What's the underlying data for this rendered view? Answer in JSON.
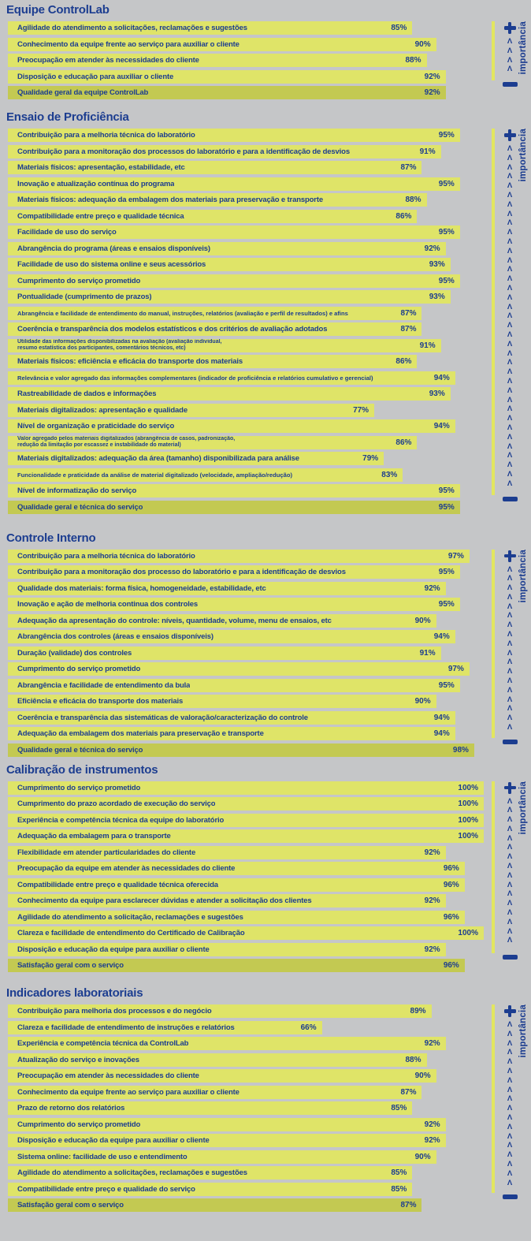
{
  "page": {
    "background_color": "#c5c6c8",
    "bar_color": "#dfe468",
    "summary_bar_color": "#c3c952",
    "text_color": "#1c3d90",
    "unit": "%"
  },
  "importance_scale": {
    "label": "importância",
    "plus_icon": "+",
    "minus_icon": "−",
    "chevron_char": "Λ"
  },
  "chart_data": [
    {
      "type": "bar",
      "title": "Equipe ControlLab",
      "unit": "%",
      "xlim": [
        0,
        100
      ],
      "legend_position": "right",
      "items": [
        {
          "label": "Agilidade do atendimento a solicitações, reclamações e sugestões",
          "value": 85
        },
        {
          "label": "Conhecimento da equipe frente ao serviço para auxiliar o cliente",
          "value": 90
        },
        {
          "label": "Preocupação em atender às necessidades do cliente",
          "value": 88
        },
        {
          "label": "Disposição e educação para auxiliar o cliente",
          "value": 92
        },
        {
          "label": "Qualidade geral da equipe ControlLab",
          "value": 92,
          "summary": true
        }
      ]
    },
    {
      "type": "bar",
      "title": "Ensaio de Proficiência",
      "unit": "%",
      "xlim": [
        0,
        100
      ],
      "legend_position": "right",
      "items": [
        {
          "label": "Contribuição para a melhoria técnica do laboratório",
          "value": 95
        },
        {
          "label": "Contribuição para a monitoração dos processos do laboratório e para a identificação de desvios",
          "value": 91
        },
        {
          "label": "Materiais físicos: apresentação, estabilidade, etc",
          "value": 87
        },
        {
          "label": "Inovação e atualização contínua do programa",
          "value": 95
        },
        {
          "label": "Materiais físicos: adequação da embalagem dos materiais para preservação e transporte",
          "value": 88
        },
        {
          "label": "Compatibilidade entre preço e qualidade técnica",
          "value": 86
        },
        {
          "label": "Facilidade de uso do serviço",
          "value": 95
        },
        {
          "label": "Abrangência do programa (áreas e ensaios disponíveis)",
          "value": 92
        },
        {
          "label": "Facilidade de uso do sistema online e seus acessórios",
          "value": 93
        },
        {
          "label": "Cumprimento do serviço prometido",
          "value": 95
        },
        {
          "label": "Pontualidade (cumprimento de prazos)",
          "value": 93
        },
        {
          "label": "Abrangência e facilidade de entendimento do manual, instruções, relatórios (avaliação e perfil de resultados) e afins",
          "value": 87,
          "small": true
        },
        {
          "label": "Coerência e transparência dos modelos estatísticos e dos critérios de avaliação adotados",
          "value": 87
        },
        {
          "label": "Utilidade das informações disponibilizadas na avaliação (avaliação individual,\nresumo estatística dos participantes, comentários técnicos, etc)",
          "value": 91,
          "twoline": true
        },
        {
          "label": "Materiais físicos: eficiência e eficácia do transporte dos materiais",
          "value": 86
        },
        {
          "label": "Relevância e valor agregado das informações complementares (indicador de proficiência e relatórios cumulativo e gerencial)",
          "value": 94,
          "small": true
        },
        {
          "label": "Rastreabilidade de dados e informações",
          "value": 93
        },
        {
          "label": "Materiais digitalizados: apresentação e qualidade",
          "value": 77
        },
        {
          "label": "Nível de organização e praticidade do serviço",
          "value": 94
        },
        {
          "label": "Valor agregado pelos materiais digitalizados (abrangência de casos, padronização,\nredução da limitação por escassez e instabilidade do material)",
          "value": 86,
          "twoline": true
        },
        {
          "label": "Materiais digitalizados: adequação da área (tamanho) disponibilizada para análise",
          "value": 79
        },
        {
          "label": "Funcionalidade e praticidade da análise de material digitalizado (velocidade, ampliação/redução)",
          "value": 83,
          "small": true
        },
        {
          "label": "Nível de informatização do serviço",
          "value": 95
        },
        {
          "label": "Qualidade geral e técnica do serviço",
          "value": 95,
          "summary": true
        }
      ]
    },
    {
      "type": "bar",
      "title": "Controle Interno",
      "unit": "%",
      "xlim": [
        0,
        100
      ],
      "legend_position": "right",
      "items": [
        {
          "label": "Contribuição para a melhoria técnica do laboratório",
          "value": 97
        },
        {
          "label": "Contribuição para a monitoração dos processo do laboratório e para a identificação de desvios",
          "value": 95
        },
        {
          "label": "Qualidade dos materiais: forma física, homogeneidade, estabilidade, etc",
          "value": 92
        },
        {
          "label": "Inovação e ação de melhoria continua dos controles",
          "value": 95
        },
        {
          "label": "Adequação da apresentação do controle: níveis, quantidade, volume, menu de ensaios, etc",
          "value": 90
        },
        {
          "label": "Abrangência dos controles (áreas e ensaios disponíveis)",
          "value": 94
        },
        {
          "label": "Duração (validade) dos controles",
          "value": 91
        },
        {
          "label": "Cumprimento do serviço prometido",
          "value": 97
        },
        {
          "label": "Abrangência e facilidade de entendimento da bula",
          "value": 95
        },
        {
          "label": "Eficiência e eficácia do transporte dos materiais",
          "value": 90
        },
        {
          "label": "Coerência e transparência das sistemáticas de valoração/caracterização do controle",
          "value": 94
        },
        {
          "label": "Adequação da embalagem dos materiais para preservação e transporte",
          "value": 94
        },
        {
          "label": "Qualidade geral e técnica do serviço",
          "value": 98,
          "summary": true
        }
      ]
    },
    {
      "type": "bar",
      "title": "Calibração de instrumentos",
      "unit": "%",
      "xlim": [
        0,
        100
      ],
      "legend_position": "right",
      "items": [
        {
          "label": "Cumprimento do serviço prometido",
          "value": 100
        },
        {
          "label": "Cumprimento do prazo acordado de execução do serviço",
          "value": 100
        },
        {
          "label": "Experiência e competência técnica da equipe do laboratório",
          "value": 100
        },
        {
          "label": "Adequação da embalagem para o transporte",
          "value": 100
        },
        {
          "label": "Flexibilidade em atender particularidades do cliente",
          "value": 92
        },
        {
          "label": "Preocupação da equipe em atender às necessidades do cliente",
          "value": 96
        },
        {
          "label": "Compatibilidade entre preço e qualidade técnica oferecida",
          "value": 96
        },
        {
          "label": "Conhecimento da equipe para esclarecer dúvidas e atender a solicitação dos clientes",
          "value": 92
        },
        {
          "label": "Agilidade do atendimento a solicitação, reclamações e sugestões",
          "value": 96
        },
        {
          "label": "Clareza e facilidade de entendimento do Certificado de Calibração",
          "value": 100
        },
        {
          "label": "Disposição e educação da equipe para auxiliar o cliente",
          "value": 92
        },
        {
          "label": "Satisfação geral com o serviço",
          "value": 96,
          "summary": true
        }
      ]
    },
    {
      "type": "bar",
      "title": "Indicadores laboratoriais",
      "unit": "%",
      "xlim": [
        0,
        100
      ],
      "legend_position": "right",
      "items": [
        {
          "label": "Contribuição para melhoria dos processos e do negócio",
          "value": 89
        },
        {
          "label": "Clareza e facilidade de entendimento de instruções e relatórios",
          "value": 66
        },
        {
          "label": "Experiência e competência técnica da ControlLab",
          "value": 92
        },
        {
          "label": "Atualização do serviço e inovações",
          "value": 88
        },
        {
          "label": "Preocupação em atender às necessidades do cliente",
          "value": 90
        },
        {
          "label": "Conhecimento da equipe frente ao serviço para auxiliar o cliente",
          "value": 87
        },
        {
          "label": "Prazo de retorno dos relatórios",
          "value": 85
        },
        {
          "label": "Cumprimento do serviço prometido",
          "value": 92
        },
        {
          "label": "Disposição e educação da equipe para auxiliar o cliente",
          "value": 92
        },
        {
          "label": "Sistema online: facilidade de uso e entendimento",
          "value": 90
        },
        {
          "label": "Agilidade do atendimento a solicitações, reclamações e sugestões",
          "value": 85
        },
        {
          "label": "Compatibilidade entre preço e qualidade do serviço",
          "value": 85
        },
        {
          "label": "Satisfação geral com o serviço",
          "value": 87,
          "summary": true
        }
      ]
    }
  ]
}
